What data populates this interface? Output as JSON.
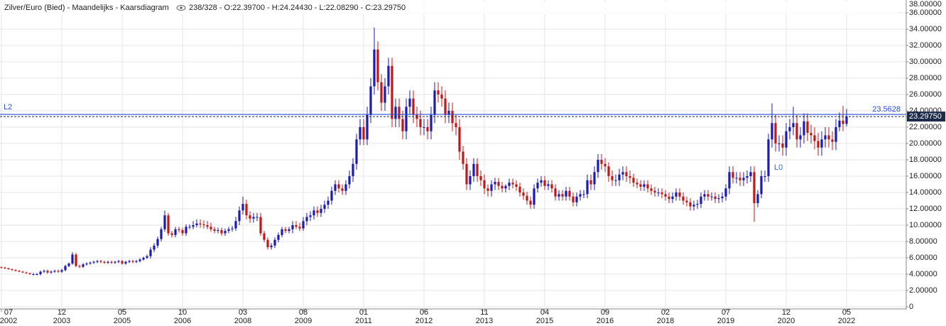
{
  "chart_data": {
    "type": "candlestick",
    "title": "Zilver/Euro (Bied) - Maandelijks - Kaarsdiagram",
    "info": "238/328 - O:22.39700 - H:24.24430 - L:22.08290 - C:23.29750",
    "up_color": "#1a1ab4",
    "down_color": "#c01818",
    "grid": true,
    "ylim": [
      0,
      37.57
    ],
    "yticks": [
      0,
      {
        "value": 2,
        "label": "2.00000"
      },
      {
        "value": 4,
        "label": "4.00000"
      },
      {
        "value": 6,
        "label": "6.00000"
      },
      {
        "value": 8,
        "label": "8.00000"
      },
      {
        "value": 10,
        "label": "10.00000"
      },
      {
        "value": 12,
        "label": "12.00000"
      },
      {
        "value": 14,
        "label": "14.00000"
      },
      {
        "value": 16,
        "label": "16.00000"
      },
      {
        "value": 18,
        "label": "18.00000"
      },
      {
        "value": 20,
        "label": "20.00000"
      },
      {
        "value": 22,
        "label": "22.00000"
      },
      {
        "value": 24,
        "label": "24.00000"
      },
      {
        "value": 26,
        "label": "26.00000"
      },
      {
        "value": 28,
        "label": "28.00000"
      },
      {
        "value": 30,
        "label": "30.00000"
      },
      {
        "value": 32,
        "label": "32.00000"
      },
      {
        "value": 34,
        "label": "34.00000"
      },
      {
        "value": 36,
        "label": "36.00000"
      },
      {
        "value": 38,
        "label": "38.00000"
      }
    ],
    "xticks": [
      {
        "value": "2002-07",
        "label": [
          "07",
          "2002"
        ]
      },
      {
        "value": "2003-12",
        "label": [
          "12",
          "2003"
        ]
      },
      {
        "value": "2005-05",
        "label": [
          "05",
          "2005"
        ]
      },
      {
        "value": "2006-10",
        "label": [
          "10",
          "2006"
        ]
      },
      {
        "value": "2008-03",
        "label": [
          "03",
          "2008"
        ]
      },
      {
        "value": "2009-08",
        "label": [
          "08",
          "2009"
        ]
      },
      {
        "value": "2011-01",
        "label": [
          "01",
          "2011"
        ]
      },
      {
        "value": "2012-06",
        "label": [
          "06",
          "2012"
        ]
      },
      {
        "value": "2013-11",
        "label": [
          "11",
          "2013"
        ]
      },
      {
        "value": "2015-04",
        "label": [
          "04",
          "2015"
        ]
      },
      {
        "value": "2016-09",
        "label": [
          "09",
          "2016"
        ]
      },
      {
        "value": "2018-02",
        "label": [
          "02",
          "2018"
        ]
      },
      {
        "value": "2019-07",
        "label": [
          "07",
          "2019"
        ]
      },
      {
        "value": "2020-12",
        "label": [
          "12",
          "2020"
        ]
      },
      {
        "value": "2022-05",
        "label": [
          "05",
          "2022"
        ]
      }
    ],
    "level": {
      "name": "L2",
      "value": 23.5628,
      "color": "#2a4fd0"
    },
    "current": {
      "value": 23.2975,
      "label": "23.29750",
      "color": "#1c2b4a"
    },
    "annotation": {
      "text": "L0",
      "color": "#2a6fe0"
    },
    "x": [
      "2002-07",
      "2002-08",
      "2002-09",
      "2002-10",
      "2002-11",
      "2002-12",
      "2003-01",
      "2003-02",
      "2003-03",
      "2003-04",
      "2003-05",
      "2003-06",
      "2003-07",
      "2003-08",
      "2003-09",
      "2003-10",
      "2003-11",
      "2003-12",
      "2004-01",
      "2004-02",
      "2004-03",
      "2004-04",
      "2004-05",
      "2004-06",
      "2004-07",
      "2004-08",
      "2004-09",
      "2004-10",
      "2004-11",
      "2004-12",
      "2005-01",
      "2005-02",
      "2005-03",
      "2005-04",
      "2005-05",
      "2005-06",
      "2005-07",
      "2005-08",
      "2005-09",
      "2005-10",
      "2005-11",
      "2005-12",
      "2006-01",
      "2006-02",
      "2006-03",
      "2006-04",
      "2006-05",
      "2006-06",
      "2006-07",
      "2006-08",
      "2006-09",
      "2006-10",
      "2006-11",
      "2006-12",
      "2007-01",
      "2007-02",
      "2007-03",
      "2007-04",
      "2007-05",
      "2007-06",
      "2007-07",
      "2007-08",
      "2007-09",
      "2007-10",
      "2007-11",
      "2007-12",
      "2008-01",
      "2008-02",
      "2008-03",
      "2008-04",
      "2008-05",
      "2008-06",
      "2008-07",
      "2008-08",
      "2008-09",
      "2008-10",
      "2008-11",
      "2008-12",
      "2009-01",
      "2009-02",
      "2009-03",
      "2009-04",
      "2009-05",
      "2009-06",
      "2009-07",
      "2009-08",
      "2009-09",
      "2009-10",
      "2009-11",
      "2009-12",
      "2010-01",
      "2010-02",
      "2010-03",
      "2010-04",
      "2010-05",
      "2010-06",
      "2010-07",
      "2010-08",
      "2010-09",
      "2010-10",
      "2010-11",
      "2010-12",
      "2011-01",
      "2011-02",
      "2011-03",
      "2011-04",
      "2011-05",
      "2011-06",
      "2011-07",
      "2011-08",
      "2011-09",
      "2011-10",
      "2011-11",
      "2011-12",
      "2012-01",
      "2012-02",
      "2012-03",
      "2012-04",
      "2012-05",
      "2012-06",
      "2012-07",
      "2012-08",
      "2012-09",
      "2012-10",
      "2012-11",
      "2012-12",
      "2013-01",
      "2013-02",
      "2013-03",
      "2013-04",
      "2013-05",
      "2013-06",
      "2013-07",
      "2013-08",
      "2013-09",
      "2013-10",
      "2013-11",
      "2013-12",
      "2014-01",
      "2014-02",
      "2014-03",
      "2014-04",
      "2014-05",
      "2014-06",
      "2014-07",
      "2014-08",
      "2014-09",
      "2014-10",
      "2014-11",
      "2014-12",
      "2015-01",
      "2015-02",
      "2015-03",
      "2015-04",
      "2015-05",
      "2015-06",
      "2015-07",
      "2015-08",
      "2015-09",
      "2015-10",
      "2015-11",
      "2015-12",
      "2016-01",
      "2016-02",
      "2016-03",
      "2016-04",
      "2016-05",
      "2016-06",
      "2016-07",
      "2016-08",
      "2016-09",
      "2016-10",
      "2016-11",
      "2016-12",
      "2017-01",
      "2017-02",
      "2017-03",
      "2017-04",
      "2017-05",
      "2017-06",
      "2017-07",
      "2017-08",
      "2017-09",
      "2017-10",
      "2017-11",
      "2017-12",
      "2018-01",
      "2018-02",
      "2018-03",
      "2018-04",
      "2018-05",
      "2018-06",
      "2018-07",
      "2018-08",
      "2018-09",
      "2018-10",
      "2018-11",
      "2018-12",
      "2019-01",
      "2019-02",
      "2019-03",
      "2019-04",
      "2019-05",
      "2019-06",
      "2019-07",
      "2019-08",
      "2019-09",
      "2019-10",
      "2019-11",
      "2019-12",
      "2020-01",
      "2020-02",
      "2020-03",
      "2020-04",
      "2020-05",
      "2020-06",
      "2020-07",
      "2020-08",
      "2020-09",
      "2020-10",
      "2020-11",
      "2020-12",
      "2021-01",
      "2021-02",
      "2021-03",
      "2021-04",
      "2021-05",
      "2021-06",
      "2021-07",
      "2021-08",
      "2021-09",
      "2021-10",
      "2021-11",
      "2021-12",
      "2022-01",
      "2022-02",
      "2022-03",
      "2022-04",
      "2022-05"
    ],
    "open": [
      4.85,
      4.8,
      4.7,
      4.6,
      4.5,
      4.4,
      4.3,
      4.2,
      4.1,
      4.0,
      4.0,
      4.0,
      4.3,
      4.4,
      4.2,
      4.3,
      4.4,
      4.3,
      4.5,
      5.0,
      5.3,
      6.4,
      5.0,
      4.9,
      5.2,
      5.3,
      5.4,
      5.5,
      5.6,
      5.5,
      5.4,
      5.5,
      5.4,
      5.5,
      5.6,
      5.3,
      5.5,
      5.6,
      5.5,
      5.6,
      5.8,
      6.0,
      6.2,
      7.0,
      7.5,
      8.3,
      9.5,
      11.2,
      9.0,
      8.8,
      9.5,
      9.4,
      9.0,
      9.8,
      9.8,
      10.0,
      10.2,
      10.1,
      10.0,
      9.8,
      9.5,
      9.3,
      9.4,
      9.0,
      9.3,
      9.5,
      9.6,
      10.5,
      11.8,
      12.6,
      11.2,
      10.8,
      11.0,
      11.0,
      9.0,
      8.2,
      7.3,
      7.5,
      8.2,
      8.8,
      9.5,
      9.3,
      9.5,
      10.0,
      9.8,
      9.6,
      10.5,
      11.0,
      11.2,
      11.8,
      11.5,
      12.0,
      12.5,
      13.0,
      14.2,
      15.0,
      14.5,
      14.2,
      15.0,
      16.0,
      17.5,
      20.5,
      22.0,
      20.5,
      23.5,
      27.0,
      31.5,
      27.5,
      25.0,
      27.0,
      29.5,
      23.0,
      24.5,
      23.0,
      21.5,
      24.5,
      25.5,
      23.5,
      23.0,
      22.0,
      22.0,
      21.5,
      23.5,
      26.5,
      26.0,
      25.5,
      23.5,
      24.0,
      22.5,
      22.0,
      19.0,
      17.5,
      15.0,
      16.0,
      17.5,
      16.0,
      15.5,
      14.5,
      14.2,
      15.0,
      15.3,
      14.8,
      14.5,
      14.8,
      15.2,
      15.0,
      14.7,
      14.0,
      13.6,
      13.0,
      12.5,
      14.5,
      15.2,
      15.5,
      14.8,
      15.0,
      14.5,
      13.5,
      13.8,
      13.5,
      14.2,
      13.5,
      12.8,
      13.5,
      13.8,
      13.8,
      15.5,
      15.0,
      16.5,
      18.0,
      17.5,
      17.2,
      16.0,
      15.5,
      15.5,
      16.2,
      16.5,
      16.0,
      15.8,
      15.2,
      15.0,
      14.7,
      15.0,
      14.5,
      14.2,
      14.0,
      14.0,
      13.8,
      13.5,
      13.2,
      13.5,
      14.0,
      13.5,
      13.0,
      12.8,
      12.3,
      12.5,
      12.6,
      13.5,
      13.8,
      13.5,
      13.5,
      13.2,
      13.3,
      13.5,
      14.5,
      16.5,
      15.8,
      15.8,
      15.5,
      15.8,
      16.0,
      16.5,
      12.7,
      13.8,
      16.0,
      16.0,
      20.5,
      22.5,
      20.0,
      20.0,
      19.5,
      21.5,
      22.0,
      22.5,
      20.5,
      21.0,
      22.7,
      21.3,
      21.0,
      20.3,
      19.5,
      20.5,
      21.0,
      20.5,
      20.2,
      22.0,
      22.8,
      22.397
    ],
    "high": [
      4.95,
      4.9,
      4.8,
      4.7,
      4.6,
      4.5,
      4.4,
      4.3,
      4.2,
      4.15,
      4.15,
      4.45,
      4.55,
      4.55,
      4.45,
      4.55,
      4.55,
      4.65,
      5.15,
      5.45,
      6.7,
      6.6,
      5.15,
      5.35,
      5.45,
      5.55,
      5.65,
      5.75,
      5.75,
      5.65,
      5.65,
      5.65,
      5.65,
      5.75,
      5.75,
      5.65,
      5.75,
      5.75,
      5.75,
      5.95,
      6.15,
      6.4,
      7.3,
      7.8,
      8.6,
      9.8,
      11.8,
      11.5,
      9.3,
      9.8,
      9.8,
      9.7,
      10.1,
      10.1,
      10.5,
      10.7,
      10.7,
      10.6,
      10.5,
      10.3,
      9.8,
      9.7,
      9.7,
      9.6,
      9.8,
      9.9,
      11.0,
      12.3,
      13.5,
      13.1,
      11.7,
      11.5,
      11.5,
      11.5,
      9.3,
      8.5,
      7.8,
      8.5,
      9.1,
      9.8,
      9.8,
      9.8,
      10.5,
      10.5,
      10.3,
      11.0,
      11.5,
      11.7,
      12.3,
      12.3,
      12.5,
      13.0,
      13.5,
      14.7,
      15.5,
      15.5,
      15.0,
      15.5,
      16.7,
      18.2,
      21.2,
      23.0,
      23.0,
      24.5,
      28.0,
      34.2,
      32.5,
      28.5,
      28.0,
      30.5,
      30.5,
      25.5,
      25.5,
      24.0,
      25.5,
      26.5,
      26.5,
      24.5,
      24.0,
      23.0,
      23.0,
      24.5,
      27.5,
      27.5,
      27.0,
      26.5,
      25.0,
      25.0,
      23.5,
      23.0,
      19.7,
      18.2,
      16.7,
      18.2,
      18.2,
      16.7,
      16.2,
      15.0,
      15.5,
      15.8,
      15.8,
      15.3,
      15.0,
      15.7,
      15.7,
      15.5,
      15.2,
      14.5,
      14.1,
      13.5,
      15.0,
      15.7,
      16.0,
      16.0,
      15.5,
      15.5,
      15.0,
      14.3,
      14.3,
      14.7,
      14.7,
      14.0,
      14.0,
      14.3,
      14.3,
      16.2,
      16.2,
      17.2,
      18.7,
      18.7,
      18.2,
      17.7,
      16.7,
      16.2,
      16.9,
      17.2,
      17.2,
      16.7,
      16.3,
      15.7,
      15.5,
      15.5,
      15.5,
      15.0,
      14.7,
      14.5,
      14.5,
      14.3,
      14.0,
      14.0,
      14.5,
      14.5,
      14.0,
      13.5,
      13.3,
      13.0,
      13.1,
      14.0,
      14.3,
      14.3,
      14.0,
      14.0,
      13.8,
      14.0,
      15.0,
      17.2,
      17.2,
      16.5,
      16.5,
      16.5,
      16.7,
      17.2,
      17.2,
      14.3,
      16.7,
      16.7,
      21.2,
      24.9,
      23.5,
      21.0,
      21.0,
      22.5,
      23.0,
      24.5,
      23.5,
      22.0,
      23.7,
      23.7,
      22.3,
      22.0,
      21.3,
      21.5,
      22.0,
      22.0,
      21.5,
      23.0,
      23.8,
      24.6,
      24.2443
    ],
    "low": [
      4.7,
      4.65,
      4.55,
      4.45,
      4.35,
      4.25,
      4.15,
      4.05,
      3.95,
      3.85,
      3.85,
      3.85,
      4.15,
      4.05,
      4.05,
      4.15,
      4.15,
      4.15,
      4.35,
      4.85,
      5.15,
      4.85,
      4.75,
      4.75,
      5.05,
      5.15,
      5.25,
      5.35,
      5.35,
      5.25,
      5.25,
      5.25,
      5.25,
      5.35,
      5.15,
      5.15,
      5.35,
      5.35,
      5.35,
      5.45,
      5.65,
      5.85,
      5.9,
      6.7,
      7.2,
      8.0,
      9.2,
      8.7,
      8.5,
      8.5,
      9.1,
      8.7,
      8.7,
      9.5,
      9.5,
      9.7,
      9.7,
      9.6,
      9.5,
      9.2,
      9.0,
      9.0,
      8.7,
      8.7,
      9.0,
      9.2,
      9.3,
      10.0,
      11.3,
      10.7,
      10.3,
      10.3,
      10.5,
      8.7,
      7.9,
      7.0,
      7.0,
      7.2,
      7.9,
      8.5,
      9.0,
      9.0,
      9.0,
      9.5,
      9.3,
      9.3,
      10.0,
      10.5,
      10.7,
      11.0,
      11.0,
      11.5,
      12.0,
      12.5,
      13.7,
      14.0,
      13.7,
      13.7,
      14.5,
      15.3,
      16.8,
      19.8,
      19.8,
      19.8,
      22.5,
      26.0,
      26.5,
      24.0,
      24.0,
      26.0,
      22.0,
      22.0,
      22.0,
      20.5,
      20.5,
      23.5,
      22.5,
      22.0,
      21.0,
      21.0,
      20.5,
      20.5,
      22.5,
      25.0,
      24.5,
      22.5,
      22.5,
      21.5,
      21.0,
      18.0,
      16.8,
      14.3,
      14.3,
      15.3,
      15.3,
      14.8,
      13.8,
      13.5,
      13.5,
      14.3,
      14.3,
      14.0,
      14.0,
      14.3,
      14.5,
      14.2,
      13.5,
      13.1,
      12.5,
      12.0,
      12.0,
      14.0,
      14.7,
      14.3,
      14.3,
      14.0,
      13.0,
      13.0,
      13.0,
      13.0,
      13.0,
      12.3,
      12.3,
      13.0,
      13.3,
      13.3,
      14.3,
      14.3,
      15.8,
      16.8,
      16.5,
      15.3,
      14.8,
      14.8,
      14.8,
      15.5,
      15.3,
      15.1,
      14.7,
      14.5,
      14.2,
      14.2,
      14.0,
      13.7,
      13.5,
      13.5,
      13.3,
      13.0,
      12.7,
      12.7,
      13.0,
      13.0,
      12.5,
      12.3,
      11.8,
      11.8,
      12.0,
      12.1,
      13.0,
      13.0,
      13.0,
      12.7,
      12.7,
      12.8,
      13.0,
      13.8,
      15.1,
      15.1,
      14.8,
      14.8,
      15.1,
      15.3,
      10.4,
      12.2,
      13.3,
      15.3,
      15.3,
      19.5,
      19.0,
      19.0,
      18.5,
      18.5,
      20.5,
      21.0,
      19.5,
      19.5,
      20.0,
      20.3,
      20.0,
      19.3,
      18.5,
      18.5,
      19.5,
      19.5,
      19.2,
      19.2,
      21.5,
      21.5,
      22.0829
    ],
    "close": [
      4.8,
      4.7,
      4.6,
      4.5,
      4.4,
      4.3,
      4.2,
      4.1,
      4.0,
      4.0,
      4.0,
      4.3,
      4.4,
      4.2,
      4.3,
      4.4,
      4.3,
      4.5,
      5.0,
      5.3,
      6.4,
      5.0,
      4.9,
      5.2,
      5.3,
      5.4,
      5.5,
      5.6,
      5.5,
      5.4,
      5.5,
      5.4,
      5.5,
      5.6,
      5.3,
      5.5,
      5.6,
      5.5,
      5.6,
      5.8,
      6.0,
      6.2,
      7.0,
      7.5,
      8.3,
      9.5,
      11.2,
      9.0,
      8.8,
      9.5,
      9.4,
      9.0,
      9.8,
      9.8,
      10.0,
      10.2,
      10.1,
      10.0,
      9.8,
      9.5,
      9.3,
      9.4,
      9.0,
      9.3,
      9.5,
      9.6,
      10.5,
      11.8,
      12.6,
      11.2,
      10.8,
      11.0,
      11.0,
      9.0,
      8.2,
      7.3,
      7.5,
      8.2,
      8.8,
      9.5,
      9.3,
      9.5,
      10.0,
      9.8,
      9.6,
      10.5,
      11.0,
      11.2,
      11.8,
      11.5,
      12.0,
      12.5,
      13.0,
      14.2,
      15.0,
      14.5,
      14.2,
      15.0,
      16.0,
      17.5,
      20.5,
      22.0,
      20.5,
      23.5,
      27.0,
      31.5,
      27.5,
      25.0,
      27.0,
      29.5,
      23.0,
      24.5,
      23.0,
      21.5,
      24.5,
      25.5,
      23.5,
      23.0,
      22.0,
      22.0,
      21.5,
      23.5,
      26.5,
      26.0,
      25.5,
      23.5,
      24.0,
      22.5,
      22.0,
      19.0,
      17.5,
      15.0,
      16.0,
      17.5,
      16.0,
      15.5,
      14.5,
      14.2,
      15.0,
      15.3,
      14.8,
      14.5,
      14.8,
      15.2,
      15.0,
      14.7,
      14.0,
      13.6,
      13.0,
      12.5,
      14.5,
      15.2,
      15.5,
      14.8,
      15.0,
      14.5,
      13.5,
      13.8,
      13.5,
      14.2,
      13.5,
      12.8,
      13.5,
      13.8,
      13.8,
      15.5,
      15.0,
      16.5,
      18.0,
      17.5,
      17.2,
      16.0,
      15.5,
      15.5,
      16.2,
      16.5,
      16.0,
      15.8,
      15.2,
      15.0,
      14.7,
      15.0,
      14.5,
      14.2,
      14.0,
      14.0,
      13.8,
      13.5,
      13.2,
      13.5,
      14.0,
      13.5,
      13.0,
      12.8,
      12.3,
      12.5,
      12.6,
      13.5,
      13.8,
      13.5,
      13.5,
      13.2,
      13.3,
      13.5,
      14.5,
      16.5,
      15.8,
      15.8,
      15.5,
      15.8,
      16.0,
      16.5,
      12.7,
      13.8,
      16.0,
      16.0,
      20.5,
      22.5,
      20.0,
      20.0,
      19.5,
      21.5,
      22.0,
      22.5,
      20.5,
      21.0,
      22.7,
      21.3,
      21.0,
      20.3,
      19.5,
      20.5,
      21.0,
      20.5,
      20.2,
      22.0,
      22.8,
      22.397,
      23.2975
    ]
  }
}
